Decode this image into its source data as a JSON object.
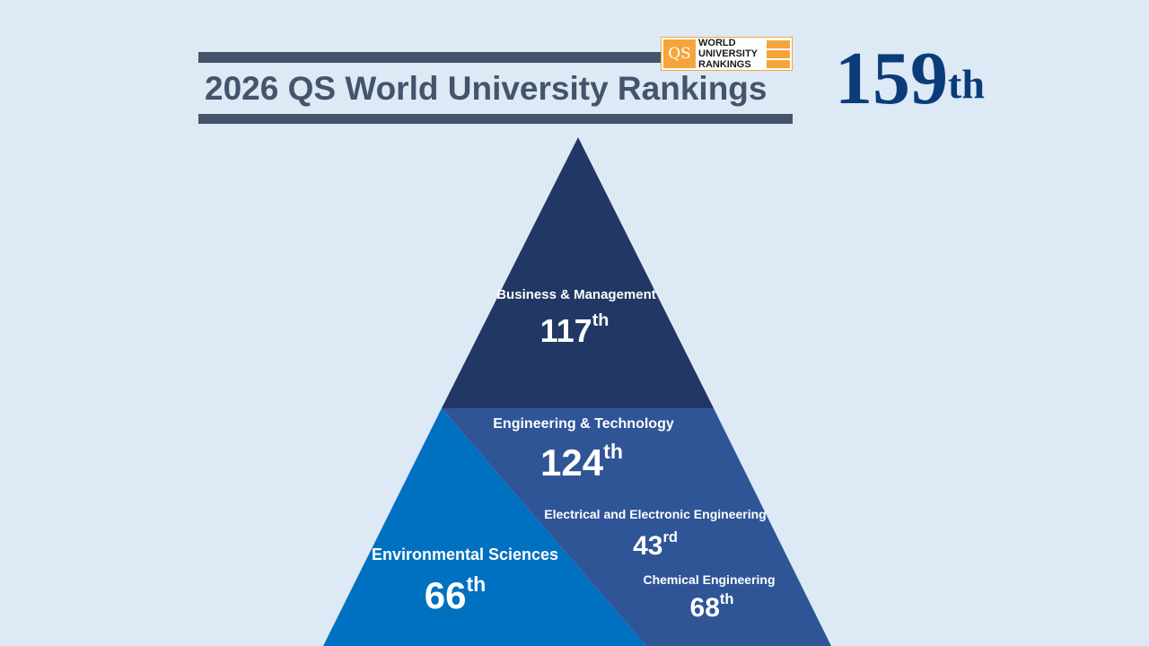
{
  "header": {
    "title": "2026 QS World University Rankings",
    "logo": {
      "mark": "QS",
      "line1": "WORLD",
      "line2": "UNIVERSITY",
      "line3": "RANKINGS"
    },
    "overall": {
      "number": "159",
      "suffix": "th"
    }
  },
  "pyramid": {
    "business": {
      "label": "Business & Management",
      "number": "117",
      "suffix": "th",
      "color": "#213864"
    },
    "engineering": {
      "label": "Engineering & Technology",
      "number": "124",
      "suffix": "th",
      "color": "#2f5597"
    },
    "environmental": {
      "label": "Environmental Sciences",
      "number": "66",
      "suffix": "th",
      "color": "#0070c0"
    },
    "electrical": {
      "label": "Electrical and Electronic Engineering",
      "number": "43",
      "suffix": "rd"
    },
    "chemical": {
      "label": "Chemical Engineering",
      "number": "68",
      "suffix": "th"
    }
  }
}
